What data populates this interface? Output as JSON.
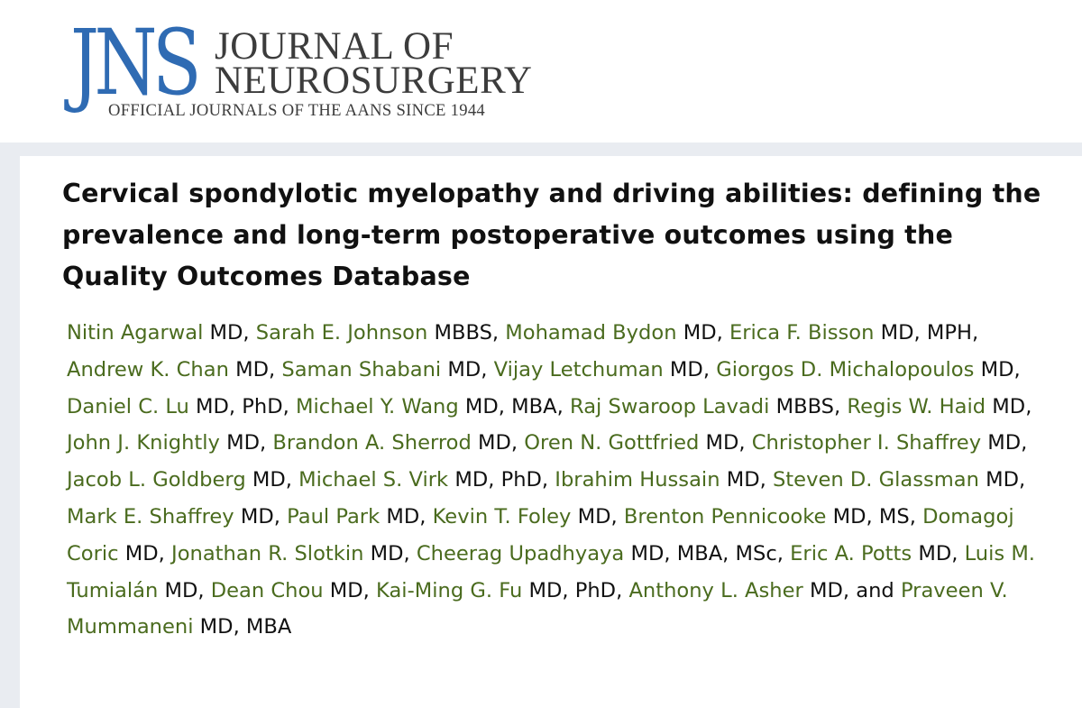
{
  "logo": {
    "mark": "JNS",
    "line1": "JOURNAL OF",
    "line2": "NEUROSURGERY",
    "tagline": "OFFICIAL JOURNALS OF THE AANS SINCE 1944"
  },
  "article": {
    "title": "Cervical spondylotic myelopathy and driving abilities: defining the prevalence and long-term postoperative outcomes using the Quality Outcomes Database",
    "author_color": "#4a6b1e",
    "authors": [
      {
        "name": "Nitin Agarwal",
        "cred": " MD, "
      },
      {
        "name": "Sarah E. Johnson",
        "cred": " MBBS, "
      },
      {
        "name": "Mohamad Bydon",
        "cred": " MD, "
      },
      {
        "name": "Erica F. Bisson",
        "cred": " MD, MPH, "
      },
      {
        "name": "Andrew K. Chan",
        "cred": " MD, "
      },
      {
        "name": "Saman Shabani",
        "cred": " MD, "
      },
      {
        "name": "Vijay Letchuman",
        "cred": " MD, "
      },
      {
        "name": "Giorgos D. Michalopoulos",
        "cred": " MD, "
      },
      {
        "name": "Daniel C. Lu",
        "cred": " MD, PhD, "
      },
      {
        "name": "Michael Y. Wang",
        "cred": " MD, MBA, "
      },
      {
        "name": "Raj Swaroop Lavadi",
        "cred": " MBBS, "
      },
      {
        "name": "Regis W. Haid",
        "cred": " MD, "
      },
      {
        "name": "John J. Knightly",
        "cred": " MD, "
      },
      {
        "name": "Brandon A. Sherrod",
        "cred": " MD, "
      },
      {
        "name": "Oren N. Gottfried",
        "cred": " MD, "
      },
      {
        "name": "Christopher I. Shaffrey",
        "cred": " MD, "
      },
      {
        "name": "Jacob L. Goldberg",
        "cred": " MD, "
      },
      {
        "name": "Michael S. Virk",
        "cred": " MD, PhD, "
      },
      {
        "name": "Ibrahim Hussain",
        "cred": " MD, "
      },
      {
        "name": "Steven D. Glassman",
        "cred": " MD, "
      },
      {
        "name": "Mark E. Shaffrey",
        "cred": " MD, "
      },
      {
        "name": "Paul Park",
        "cred": " MD, "
      },
      {
        "name": "Kevin T. Foley",
        "cred": " MD, "
      },
      {
        "name": "Brenton Pennicooke",
        "cred": " MD, MS, "
      },
      {
        "name": "Domagoj Coric",
        "cred": " MD, "
      },
      {
        "name": "Jonathan R. Slotkin",
        "cred": " MD, "
      },
      {
        "name": "Cheerag Upadhyaya",
        "cred": " MD, MBA, MSc, "
      },
      {
        "name": "Eric A. Potts",
        "cred": " MD, "
      },
      {
        "name": "Luis M. Tumialán",
        "cred": " MD, "
      },
      {
        "name": "Dean Chou",
        "cred": " MD, "
      },
      {
        "name": "Kai-Ming G. Fu",
        "cred": " MD, PhD, "
      },
      {
        "name": "Anthony L. Asher",
        "cred": " MD, and "
      },
      {
        "name": "Praveen V. Mummaneni",
        "cred": " MD, MBA"
      }
    ]
  }
}
